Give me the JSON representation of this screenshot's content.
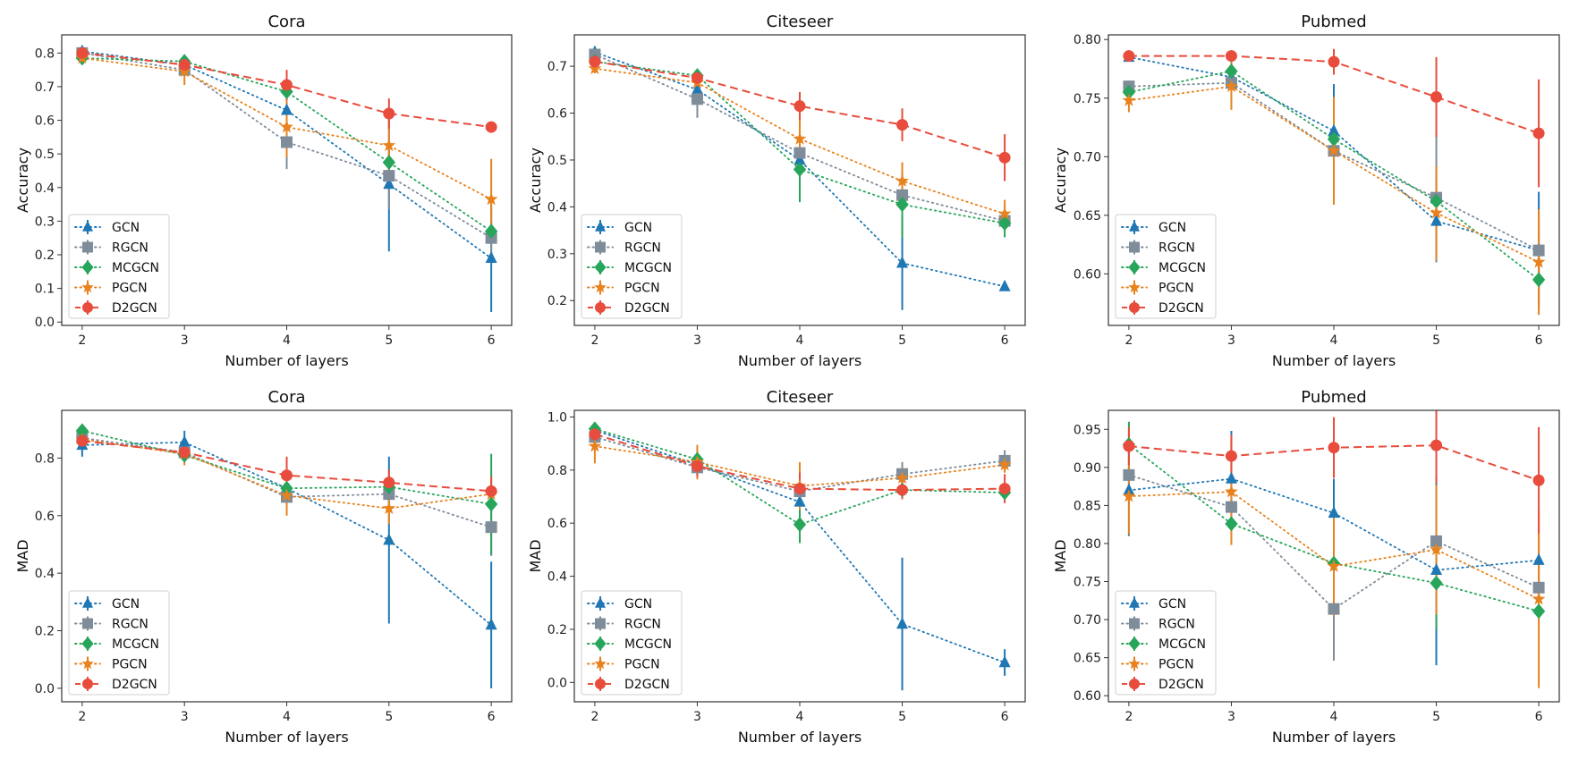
{
  "chart_data": [
    {
      "type": "line",
      "title": "Cora",
      "xlabel": "Number of layers",
      "ylabel": "Accuracy",
      "x": [
        2,
        3,
        4,
        5,
        6
      ],
      "xticks": [
        "2",
        "3",
        "4",
        "5",
        "6"
      ],
      "xlim": [
        1.8,
        6.2
      ],
      "ylim": [
        -0.01,
        0.854
      ],
      "yticks": [
        "0.0",
        "0.1",
        "0.2",
        "0.3",
        "0.4",
        "0.5",
        "0.6",
        "0.7",
        "0.8"
      ],
      "grid": false,
      "legend": "lower left",
      "series": [
        {
          "name": "GCN",
          "values": [
            0.805,
            0.765,
            0.63,
            0.41,
            0.19
          ],
          "errors": [
            0.01,
            0.01,
            0.03,
            0.2,
            0.16
          ],
          "color": "#1f77b4",
          "marker": "triangle",
          "linestyle": "dotted"
        },
        {
          "name": "RGCN",
          "values": [
            0.8,
            0.75,
            0.535,
            0.435,
            0.25
          ],
          "errors": [
            0.01,
            0.01,
            0.08,
            0.1,
            0.05
          ],
          "color": "#7f8c99",
          "marker": "square",
          "linestyle": "dotted"
        },
        {
          "name": "MCGCN",
          "values": [
            0.785,
            0.775,
            0.685,
            0.475,
            0.27
          ],
          "errors": [
            0.01,
            0.01,
            0.02,
            0.02,
            0.03
          ],
          "color": "#27a55a",
          "marker": "diamond",
          "linestyle": "dotted"
        },
        {
          "name": "PGCN",
          "values": [
            0.785,
            0.745,
            0.58,
            0.525,
            0.365
          ],
          "errors": [
            0.01,
            0.04,
            0.09,
            0.1,
            0.12
          ],
          "color": "#e8821e",
          "marker": "star",
          "linestyle": "dotted"
        },
        {
          "name": "D2GCN",
          "values": [
            0.8,
            0.765,
            0.705,
            0.62,
            0.58
          ],
          "errors": [
            0.01,
            0.01,
            0.045,
            0.045,
            0.01
          ],
          "color": "#e74c3c",
          "marker": "circle",
          "linestyle": "dashed"
        }
      ]
    },
    {
      "type": "line",
      "title": "Citeseer",
      "xlabel": "Number of layers",
      "ylabel": "Accuracy",
      "x": [
        2,
        3,
        4,
        5,
        6
      ],
      "xticks": [
        "2",
        "3",
        "4",
        "5",
        "6"
      ],
      "xlim": [
        1.8,
        6.2
      ],
      "ylim": [
        0.147,
        0.767
      ],
      "yticks": [
        "0.2",
        "0.3",
        "0.4",
        "0.5",
        "0.6",
        "0.7"
      ],
      "grid": false,
      "legend": "lower left",
      "series": [
        {
          "name": "GCN",
          "values": [
            0.73,
            0.65,
            0.5,
            0.28,
            0.23
          ],
          "errors": [
            0.01,
            0.01,
            0.01,
            0.1,
            0.005
          ],
          "color": "#1f77b4",
          "marker": "triangle",
          "linestyle": "dotted"
        },
        {
          "name": "RGCN",
          "values": [
            0.725,
            0.63,
            0.515,
            0.425,
            0.37
          ],
          "errors": [
            0.01,
            0.04,
            0.02,
            0.01,
            0.02
          ],
          "color": "#7f8c99",
          "marker": "square",
          "linestyle": "dotted"
        },
        {
          "name": "MCGCN",
          "values": [
            0.71,
            0.68,
            0.48,
            0.405,
            0.365
          ],
          "errors": [
            0.01,
            0.01,
            0.07,
            0.07,
            0.03
          ],
          "color": "#27a55a",
          "marker": "diamond",
          "linestyle": "dotted"
        },
        {
          "name": "PGCN",
          "values": [
            0.695,
            0.665,
            0.545,
            0.455,
            0.385
          ],
          "errors": [
            0.01,
            0.02,
            0.05,
            0.04,
            0.03
          ],
          "color": "#e8821e",
          "marker": "star",
          "linestyle": "dotted"
        },
        {
          "name": "D2GCN",
          "values": [
            0.71,
            0.675,
            0.615,
            0.575,
            0.505
          ],
          "errors": [
            0.01,
            0.01,
            0.03,
            0.035,
            0.05
          ],
          "color": "#e74c3c",
          "marker": "circle",
          "linestyle": "dashed"
        }
      ]
    },
    {
      "type": "line",
      "title": "Pubmed",
      "xlabel": "Number of layers",
      "ylabel": "Accuracy",
      "x": [
        2,
        3,
        4,
        5,
        6
      ],
      "xticks": [
        "2",
        "3",
        "4",
        "5",
        "6"
      ],
      "xlim": [
        1.8,
        6.2
      ],
      "ylim": [
        0.556,
        0.804
      ],
      "yticks": [
        "0.60",
        "0.65",
        "0.70",
        "0.75",
        "0.80"
      ],
      "grid": false,
      "legend": "lower left",
      "series": [
        {
          "name": "GCN",
          "values": [
            0.785,
            0.768,
            0.722,
            0.645,
            0.62
          ],
          "errors": [
            0.002,
            0.01,
            0.04,
            0.035,
            0.05
          ],
          "color": "#1f77b4",
          "marker": "triangle",
          "linestyle": "dotted"
        },
        {
          "name": "RGCN",
          "values": [
            0.76,
            0.763,
            0.705,
            0.665,
            0.62
          ],
          "errors": [
            0.005,
            0.005,
            0.01,
            0.055,
            0.02
          ],
          "color": "#7f8c99",
          "marker": "square",
          "linestyle": "dotted"
        },
        {
          "name": "MCGCN",
          "values": [
            0.755,
            0.773,
            0.715,
            0.662,
            0.595
          ],
          "errors": [
            0.005,
            0.008,
            0.035,
            0.03,
            0.02
          ],
          "color": "#27a55a",
          "marker": "diamond",
          "linestyle": "dotted"
        },
        {
          "name": "PGCN",
          "values": [
            0.748,
            0.76,
            0.705,
            0.652,
            0.61
          ],
          "errors": [
            0.01,
            0.02,
            0.046,
            0.04,
            0.045
          ],
          "color": "#e8821e",
          "marker": "star",
          "linestyle": "dotted"
        },
        {
          "name": "D2GCN",
          "values": [
            0.786,
            0.786,
            0.781,
            0.751,
            0.72
          ],
          "errors": [
            0.003,
            0.003,
            0.011,
            0.034,
            0.046
          ],
          "color": "#e74c3c",
          "marker": "circle",
          "linestyle": "dashed"
        }
      ]
    },
    {
      "type": "line",
      "title": "Cora",
      "xlabel": "Number of layers",
      "ylabel": "MAD",
      "x": [
        2,
        3,
        4,
        5,
        6
      ],
      "xticks": [
        "2",
        "3",
        "4",
        "5",
        "6"
      ],
      "xlim": [
        1.8,
        6.2
      ],
      "ylim": [
        -0.047,
        0.966
      ],
      "yticks": [
        "0.0",
        "0.2",
        "0.4",
        "0.6",
        "0.8"
      ],
      "grid": false,
      "legend": "lower left",
      "series": [
        {
          "name": "GCN",
          "values": [
            0.845,
            0.855,
            0.695,
            0.515,
            0.22
          ],
          "errors": [
            0.04,
            0.04,
            0.02,
            0.29,
            0.22
          ],
          "color": "#1f77b4",
          "marker": "triangle",
          "linestyle": "dotted"
        },
        {
          "name": "RGCN",
          "values": [
            0.87,
            0.82,
            0.665,
            0.675,
            0.56
          ],
          "errors": [
            0.02,
            0.02,
            0.02,
            0.03,
            0.1
          ],
          "color": "#7f8c99",
          "marker": "square",
          "linestyle": "dotted"
        },
        {
          "name": "MCGCN",
          "values": [
            0.895,
            0.81,
            0.695,
            0.7,
            0.64
          ],
          "errors": [
            0.02,
            0.02,
            0.02,
            0.02,
            0.175
          ],
          "color": "#27a55a",
          "marker": "diamond",
          "linestyle": "dotted"
        },
        {
          "name": "PGCN",
          "values": [
            0.865,
            0.815,
            0.67,
            0.625,
            0.675
          ],
          "errors": [
            0.02,
            0.04,
            0.07,
            0.055,
            0.02
          ],
          "color": "#e8821e",
          "marker": "star",
          "linestyle": "dotted"
        },
        {
          "name": "D2GCN",
          "values": [
            0.86,
            0.82,
            0.74,
            0.715,
            0.685
          ],
          "errors": [
            0.02,
            0.02,
            0.065,
            0.045,
            0.05
          ],
          "color": "#e74c3c",
          "marker": "circle",
          "linestyle": "dashed"
        }
      ]
    },
    {
      "type": "line",
      "title": "Citeseer",
      "xlabel": "Number of layers",
      "ylabel": "MAD",
      "x": [
        2,
        3,
        4,
        5,
        6
      ],
      "xticks": [
        "2",
        "3",
        "4",
        "5",
        "6"
      ],
      "xlim": [
        1.8,
        6.2
      ],
      "ylim": [
        -0.073,
        1.025
      ],
      "yticks": [
        "0.0",
        "0.2",
        "0.4",
        "0.6",
        "0.8",
        "1.0"
      ],
      "grid": false,
      "legend": "lower left",
      "series": [
        {
          "name": "GCN",
          "values": [
            0.95,
            0.82,
            0.68,
            0.22,
            0.075
          ],
          "errors": [
            0.01,
            0.02,
            0.03,
            0.25,
            0.05
          ],
          "color": "#1f77b4",
          "marker": "triangle",
          "linestyle": "dotted"
        },
        {
          "name": "RGCN",
          "values": [
            0.925,
            0.81,
            0.72,
            0.785,
            0.835
          ],
          "errors": [
            0.01,
            0.03,
            0.03,
            0.045,
            0.04
          ],
          "color": "#7f8c99",
          "marker": "square",
          "linestyle": "dotted"
        },
        {
          "name": "MCGCN",
          "values": [
            0.955,
            0.84,
            0.595,
            0.725,
            0.715
          ],
          "errors": [
            0.01,
            0.02,
            0.07,
            0.02,
            0.02
          ],
          "color": "#27a55a",
          "marker": "diamond",
          "linestyle": "dotted"
        },
        {
          "name": "PGCN",
          "values": [
            0.89,
            0.83,
            0.74,
            0.77,
            0.82
          ],
          "errors": [
            0.065,
            0.065,
            0.09,
            0.04,
            0.03
          ],
          "color": "#e8821e",
          "marker": "star",
          "linestyle": "dotted"
        },
        {
          "name": "D2GCN",
          "values": [
            0.935,
            0.815,
            0.73,
            0.725,
            0.73
          ],
          "errors": [
            0.01,
            0.04,
            0.06,
            0.035,
            0.055
          ],
          "color": "#e74c3c",
          "marker": "circle",
          "linestyle": "dashed"
        }
      ]
    },
    {
      "type": "line",
      "title": "Pubmed",
      "xlabel": "Number of layers",
      "ylabel": "MAD",
      "x": [
        2,
        3,
        4,
        5,
        6
      ],
      "xticks": [
        "2",
        "3",
        "4",
        "5",
        "6"
      ],
      "xlim": [
        1.8,
        6.2
      ],
      "ylim": [
        0.592,
        0.975
      ],
      "yticks": [
        "0.60",
        "0.65",
        "0.70",
        "0.75",
        "0.80",
        "0.85",
        "0.90",
        "0.95"
      ],
      "grid": false,
      "legend": "lower left",
      "series": [
        {
          "name": "GCN",
          "values": [
            0.87,
            0.885,
            0.84,
            0.765,
            0.778
          ],
          "errors": [
            0.06,
            0.063,
            0.045,
            0.125,
            0.035
          ],
          "color": "#1f77b4",
          "marker": "triangle",
          "linestyle": "dotted"
        },
        {
          "name": "RGCN",
          "values": [
            0.89,
            0.848,
            0.714,
            0.803,
            0.742
          ],
          "errors": [
            0.01,
            0.01,
            0.068,
            0.01,
            0.01
          ],
          "color": "#7f8c99",
          "marker": "square",
          "linestyle": "dotted"
        },
        {
          "name": "MCGCN",
          "values": [
            0.93,
            0.826,
            0.774,
            0.748,
            0.711
          ],
          "errors": [
            0.03,
            0.01,
            0.01,
            0.06,
            0.01
          ],
          "color": "#27a55a",
          "marker": "diamond",
          "linestyle": "dotted"
        },
        {
          "name": "PGCN",
          "values": [
            0.862,
            0.868,
            0.77,
            0.792,
            0.727
          ],
          "errors": [
            0.05,
            0.07,
            0.065,
            0.085,
            0.117
          ],
          "color": "#e8821e",
          "marker": "star",
          "linestyle": "dotted"
        },
        {
          "name": "D2GCN",
          "values": [
            0.928,
            0.915,
            0.926,
            0.929,
            0.883
          ],
          "errors": [
            0.025,
            0.028,
            0.04,
            0.05,
            0.07
          ],
          "color": "#e74c3c",
          "marker": "circle",
          "linestyle": "dashed"
        }
      ]
    }
  ]
}
